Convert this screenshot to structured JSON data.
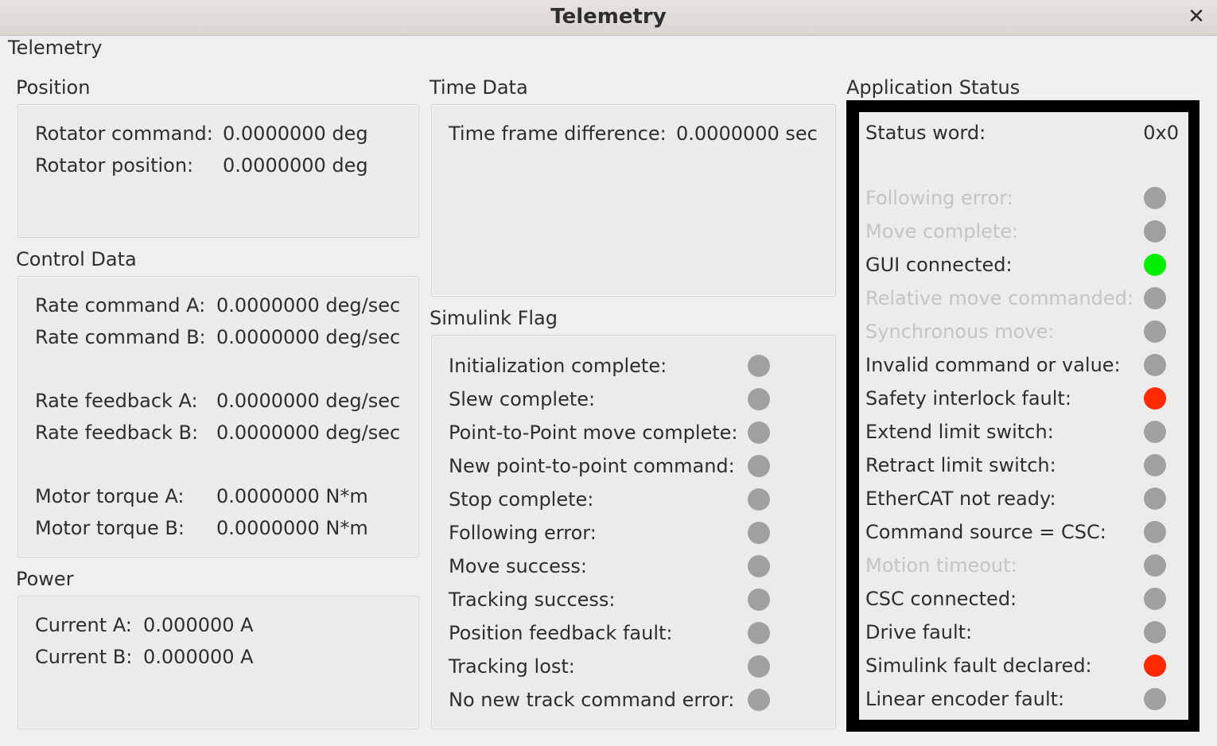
{
  "window": {
    "title": "Telemetry",
    "close_icon": "close-icon"
  },
  "tab_label": "Telemetry",
  "colors": {
    "off": "#a0a0a0",
    "on": "#00ee00",
    "fault": "#ff2a00",
    "disabled_text": "#c4c4c4"
  },
  "position": {
    "title": "Position",
    "rows": [
      {
        "label": "Rotator command:",
        "value": "0.0000000 deg"
      },
      {
        "label": "Rotator position:",
        "value": "0.0000000 deg"
      }
    ]
  },
  "control": {
    "title": "Control Data",
    "rows": [
      {
        "label": "Rate command A:",
        "value": "0.0000000 deg/sec"
      },
      {
        "label": "Rate command B:",
        "value": "0.0000000 deg/sec"
      },
      {
        "label": "Rate feedback A:",
        "value": "0.0000000 deg/sec"
      },
      {
        "label": "Rate feedback B:",
        "value": "0.0000000 deg/sec"
      },
      {
        "label": "Motor torque A:",
        "value": "0.0000000 N*m"
      },
      {
        "label": "Motor torque B:",
        "value": "0.0000000 N*m"
      }
    ]
  },
  "power": {
    "title": "Power",
    "rows": [
      {
        "label": "Current A:",
        "value": "0.000000 A"
      },
      {
        "label": "Current B:",
        "value": "0.000000 A"
      }
    ]
  },
  "time": {
    "title": "Time Data",
    "rows": [
      {
        "label": "Time frame difference:",
        "value": "0.0000000 sec"
      }
    ]
  },
  "simulink": {
    "title": "Simulink Flag",
    "flags": [
      {
        "label": "Initialization complete:",
        "state": "off"
      },
      {
        "label": "Slew complete:",
        "state": "off"
      },
      {
        "label": "Point-to-Point move complete:",
        "state": "off"
      },
      {
        "label": "New point-to-point command:",
        "state": "off"
      },
      {
        "label": "Stop complete:",
        "state": "off"
      },
      {
        "label": "Following error:",
        "state": "off"
      },
      {
        "label": "Move success:",
        "state": "off"
      },
      {
        "label": "Tracking success:",
        "state": "off"
      },
      {
        "label": "Position feedback fault:",
        "state": "off"
      },
      {
        "label": "Tracking lost:",
        "state": "off"
      },
      {
        "label": "No new track command error:",
        "state": "off"
      }
    ]
  },
  "app_status": {
    "title": "Application Status",
    "status_word_label": "Status word:",
    "status_word_value": "0x0",
    "flags": [
      {
        "label": "Following error:",
        "state": "off",
        "disabled": true
      },
      {
        "label": "Move complete:",
        "state": "off",
        "disabled": true
      },
      {
        "label": "GUI connected:",
        "state": "on",
        "disabled": false
      },
      {
        "label": "Relative move commanded:",
        "state": "off",
        "disabled": true
      },
      {
        "label": "Synchronous move:",
        "state": "off",
        "disabled": true
      },
      {
        "label": "Invalid command or value:",
        "state": "off",
        "disabled": false
      },
      {
        "label": "Safety interlock fault:",
        "state": "fault",
        "disabled": false
      },
      {
        "label": "Extend limit switch:",
        "state": "off",
        "disabled": false
      },
      {
        "label": "Retract limit switch:",
        "state": "off",
        "disabled": false
      },
      {
        "label": "EtherCAT not ready:",
        "state": "off",
        "disabled": false
      },
      {
        "label": "Command source = CSC:",
        "state": "off",
        "disabled": false
      },
      {
        "label": "Motion timeout:",
        "state": "off",
        "disabled": true
      },
      {
        "label": "CSC connected:",
        "state": "off",
        "disabled": false
      },
      {
        "label": "Drive fault:",
        "state": "off",
        "disabled": false
      },
      {
        "label": "Simulink fault declared:",
        "state": "fault",
        "disabled": false
      },
      {
        "label": "Linear encoder fault:",
        "state": "off",
        "disabled": false
      }
    ]
  }
}
